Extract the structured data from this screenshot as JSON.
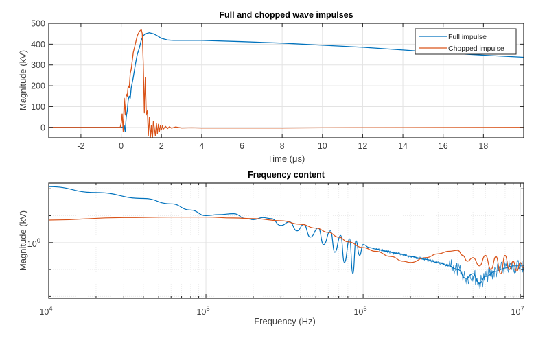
{
  "colors": {
    "full": "#0072BD",
    "chopped": "#D95319"
  },
  "chart_data": [
    {
      "type": "line",
      "title": "Full and chopped wave impulses",
      "xlabel": "Time (μs)",
      "ylabel": "Magnitude (kV)",
      "xlim": [
        -3.6,
        20
      ],
      "ylim": [
        -50,
        500
      ],
      "xticks": [
        -2,
        0,
        2,
        4,
        6,
        8,
        10,
        12,
        14,
        16,
        18
      ],
      "xtick_labels": [
        "-2",
        "0",
        "2",
        "4",
        "6",
        "8",
        "10",
        "12",
        "14",
        "16",
        "18"
      ],
      "yticks": [
        0,
        100,
        200,
        300,
        400,
        500
      ],
      "ytick_labels": [
        "0",
        "100",
        "200",
        "300",
        "400",
        "500"
      ],
      "grid": true,
      "legend": {
        "location": "top-right",
        "entries": [
          "Full impulse",
          "Chopped impulse"
        ]
      },
      "series": [
        {
          "name": "Full impulse",
          "x": [
            -3.6,
            0.0,
            0.1,
            0.15,
            0.2,
            0.25,
            0.3,
            0.35,
            0.4,
            0.45,
            0.5,
            0.6,
            0.7,
            0.8,
            0.9,
            1.0,
            1.1,
            1.2,
            1.4,
            1.6,
            1.8,
            2.0,
            2.3,
            2.6,
            3.0,
            4.0,
            6.0,
            8.0,
            10.0,
            12.0,
            14.0,
            16.0,
            18.0,
            20.0
          ],
          "y": [
            0,
            0,
            2,
            10,
            -20,
            50,
            80,
            130,
            150,
            140,
            190,
            240,
            300,
            350,
            380,
            420,
            440,
            450,
            455,
            450,
            440,
            428,
            420,
            418,
            418,
            418,
            412,
            405,
            395,
            385,
            372,
            358,
            347,
            337
          ]
        },
        {
          "name": "Chopped impulse",
          "x": [
            -3.6,
            -0.05,
            0.0,
            0.05,
            0.1,
            0.15,
            0.2,
            0.25,
            0.3,
            0.35,
            0.4,
            0.45,
            0.5,
            0.6,
            0.7,
            0.8,
            0.9,
            1.0,
            1.05,
            1.1,
            1.15,
            1.2,
            1.25,
            1.3,
            1.35,
            1.4,
            1.45,
            1.5,
            1.55,
            1.6,
            1.7,
            1.75,
            1.8,
            1.85,
            1.9,
            1.95,
            2.0,
            2.05,
            2.1,
            2.2,
            2.3,
            2.4,
            2.5,
            2.7,
            3.0,
            3.5,
            4.0,
            6.0,
            8.0,
            10.0,
            14.0,
            20.0
          ],
          "y": [
            0,
            0,
            20,
            65,
            -20,
            140,
            60,
            160,
            150,
            200,
            190,
            260,
            280,
            360,
            400,
            440,
            460,
            470,
            450,
            300,
            70,
            240,
            60,
            80,
            -40,
            50,
            -50,
            10,
            -60,
            30,
            -40,
            20,
            -30,
            15,
            -20,
            10,
            -12,
            8,
            -8,
            5,
            -6,
            3,
            -4,
            2,
            -3,
            -2,
            -3,
            -3,
            -3,
            -2,
            -1,
            0
          ]
        }
      ]
    },
    {
      "type": "line",
      "title": "Frequency content",
      "xlabel": "Frequency (Hz)",
      "ylabel": "Magnitude (kV)",
      "xscale": "log",
      "yscale": "log",
      "xlim": [
        10000,
        10500000
      ],
      "ylim": [
        0.24,
        4.6
      ],
      "xticks": [
        10000,
        100000,
        1000000,
        10000000
      ],
      "xtick_labels": [
        {
          "base": "10",
          "exp": "4"
        },
        {
          "base": "10",
          "exp": "5"
        },
        {
          "base": "10",
          "exp": "6"
        },
        {
          "base": "10",
          "exp": "7"
        }
      ],
      "yticks": [
        1
      ],
      "ytick_labels": [
        {
          "base": "10",
          "exp": "0"
        }
      ],
      "grid": true,
      "series": [
        {
          "name": "Full impulse",
          "x": [
            10000,
            20000,
            40000,
            60000,
            80000,
            100000,
            120000,
            150000,
            180000,
            200000,
            230000,
            260000,
            300000,
            340000,
            380000,
            420000,
            460000,
            520000,
            560000,
            620000,
            660000,
            720000,
            760000,
            820000,
            860000,
            900000,
            950000,
            1000000,
            1100000,
            1200000,
            1400000,
            1700000,
            2000000,
            2500000,
            3000000,
            3500000,
            4000000,
            4500000,
            5000000,
            5500000,
            6000000,
            7000000,
            8000000,
            9000000,
            10500000
          ],
          "y": [
            4.2,
            3.6,
            3.1,
            2.7,
            2.3,
            2.0,
            2.05,
            2.1,
            1.85,
            1.8,
            1.9,
            1.85,
            1.55,
            1.7,
            1.35,
            1.6,
            1.15,
            1.45,
            0.95,
            1.35,
            0.78,
            1.2,
            0.6,
            1.1,
            0.45,
            1.05,
            0.72,
            0.95,
            0.88,
            0.85,
            0.8,
            0.75,
            0.7,
            0.65,
            0.6,
            0.55,
            0.5,
            0.4,
            0.45,
            0.35,
            0.42,
            0.48,
            0.52,
            0.55,
            0.55
          ]
        },
        {
          "name": "Chopped impulse",
          "x": [
            10000,
            30000,
            60000,
            100000,
            150000,
            200000,
            300000,
            400000,
            500000,
            600000,
            700000,
            800000,
            1000000,
            1200000,
            1500000,
            1800000,
            2000000,
            2500000,
            3000000,
            3500000,
            4000000,
            4300000,
            4600000,
            5000000,
            5500000,
            6000000,
            6500000,
            7000000,
            7500000,
            8000000,
            8500000,
            9000000,
            9500000,
            10000000,
            10500000
          ],
          "y": [
            1.78,
            1.9,
            1.92,
            1.92,
            1.88,
            1.85,
            1.75,
            1.6,
            1.45,
            1.3,
            1.15,
            1.02,
            0.88,
            0.8,
            0.7,
            0.62,
            0.6,
            0.68,
            0.75,
            0.8,
            0.82,
            0.72,
            0.62,
            0.68,
            0.55,
            0.72,
            0.5,
            0.7,
            0.45,
            0.72,
            0.5,
            0.62,
            0.48,
            0.6,
            0.52
          ]
        }
      ]
    }
  ]
}
